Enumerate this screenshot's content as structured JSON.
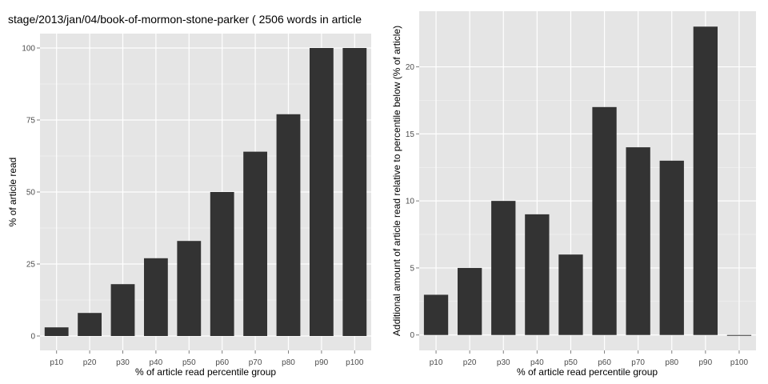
{
  "chart_data": [
    {
      "type": "bar",
      "title": "stage/2013/jan/04/book-of-mormon-stone-parker ( 2506 words in article",
      "xlabel": "% of article read percentile group",
      "ylabel": "% of article read",
      "categories": [
        "p10",
        "p20",
        "p30",
        "p40",
        "p50",
        "p60",
        "p70",
        "p80",
        "p90",
        "p100"
      ],
      "values": [
        3,
        8,
        18,
        27,
        33,
        50,
        64,
        77,
        100,
        100
      ],
      "ylim": [
        -5,
        105
      ],
      "yticks": [
        0,
        25,
        50,
        75,
        100
      ],
      "grid": true,
      "bar_color": "#333333",
      "panel_color": "#e5e5e5"
    },
    {
      "type": "bar",
      "title": "",
      "xlabel": "% of article read percentile group",
      "ylabel": "Additional amount of article read relative to percentile below (% of article)",
      "categories": [
        "p10",
        "p20",
        "p30",
        "p40",
        "p50",
        "p60",
        "p70",
        "p80",
        "p90",
        "p100"
      ],
      "values": [
        3,
        5,
        10,
        9,
        6,
        17,
        14,
        13,
        23,
        0
      ],
      "ylim": [
        -1.15,
        24.15
      ],
      "yticks": [
        0,
        5,
        10,
        15,
        20
      ],
      "grid": true,
      "bar_color": "#333333",
      "panel_color": "#e5e5e5"
    }
  ]
}
